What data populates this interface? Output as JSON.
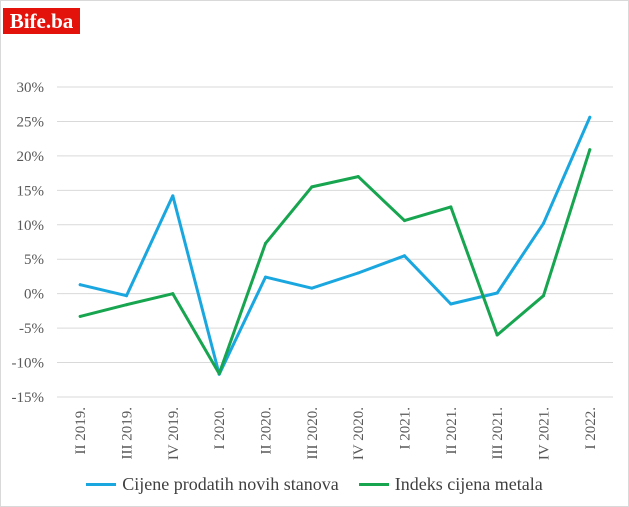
{
  "brand": {
    "logo_text": "Bife.ba",
    "logo_color": "#e3120b"
  },
  "chart_data": {
    "type": "line",
    "categories": [
      "II 2019.",
      "III 2019.",
      "IV 2019.",
      "I 2020.",
      "II 2020.",
      "III 2020.",
      "IV 2020.",
      "I 2021.",
      "II 2021.",
      "III 2021.",
      "IV 2021.",
      "I 2022."
    ],
    "series": [
      {
        "name": "Cijene prodatih novih stanova",
        "color": "#1aa7e0",
        "values": [
          1.3,
          -0.3,
          14.2,
          -11.7,
          2.4,
          0.8,
          3.0,
          5.5,
          -1.5,
          0.1,
          10.2,
          25.6
        ]
      },
      {
        "name": "Indeks cijena metala",
        "color": "#17a550",
        "values": [
          -3.3,
          -1.6,
          0.0,
          -11.6,
          7.3,
          15.5,
          17.0,
          10.6,
          12.6,
          -6.0,
          -0.3,
          20.9
        ]
      }
    ],
    "ylim": [
      -15,
      30
    ],
    "yticks": [
      -15,
      -10,
      -5,
      0,
      5,
      10,
      15,
      20,
      25,
      30
    ],
    "ytick_labels": [
      "-15%",
      "-10%",
      "-5%",
      "0%",
      "5%",
      "10%",
      "15%",
      "20%",
      "25%",
      "30%"
    ],
    "grid": true,
    "legend_position": "bottom",
    "title": "",
    "xlabel": "",
    "ylabel": ""
  }
}
